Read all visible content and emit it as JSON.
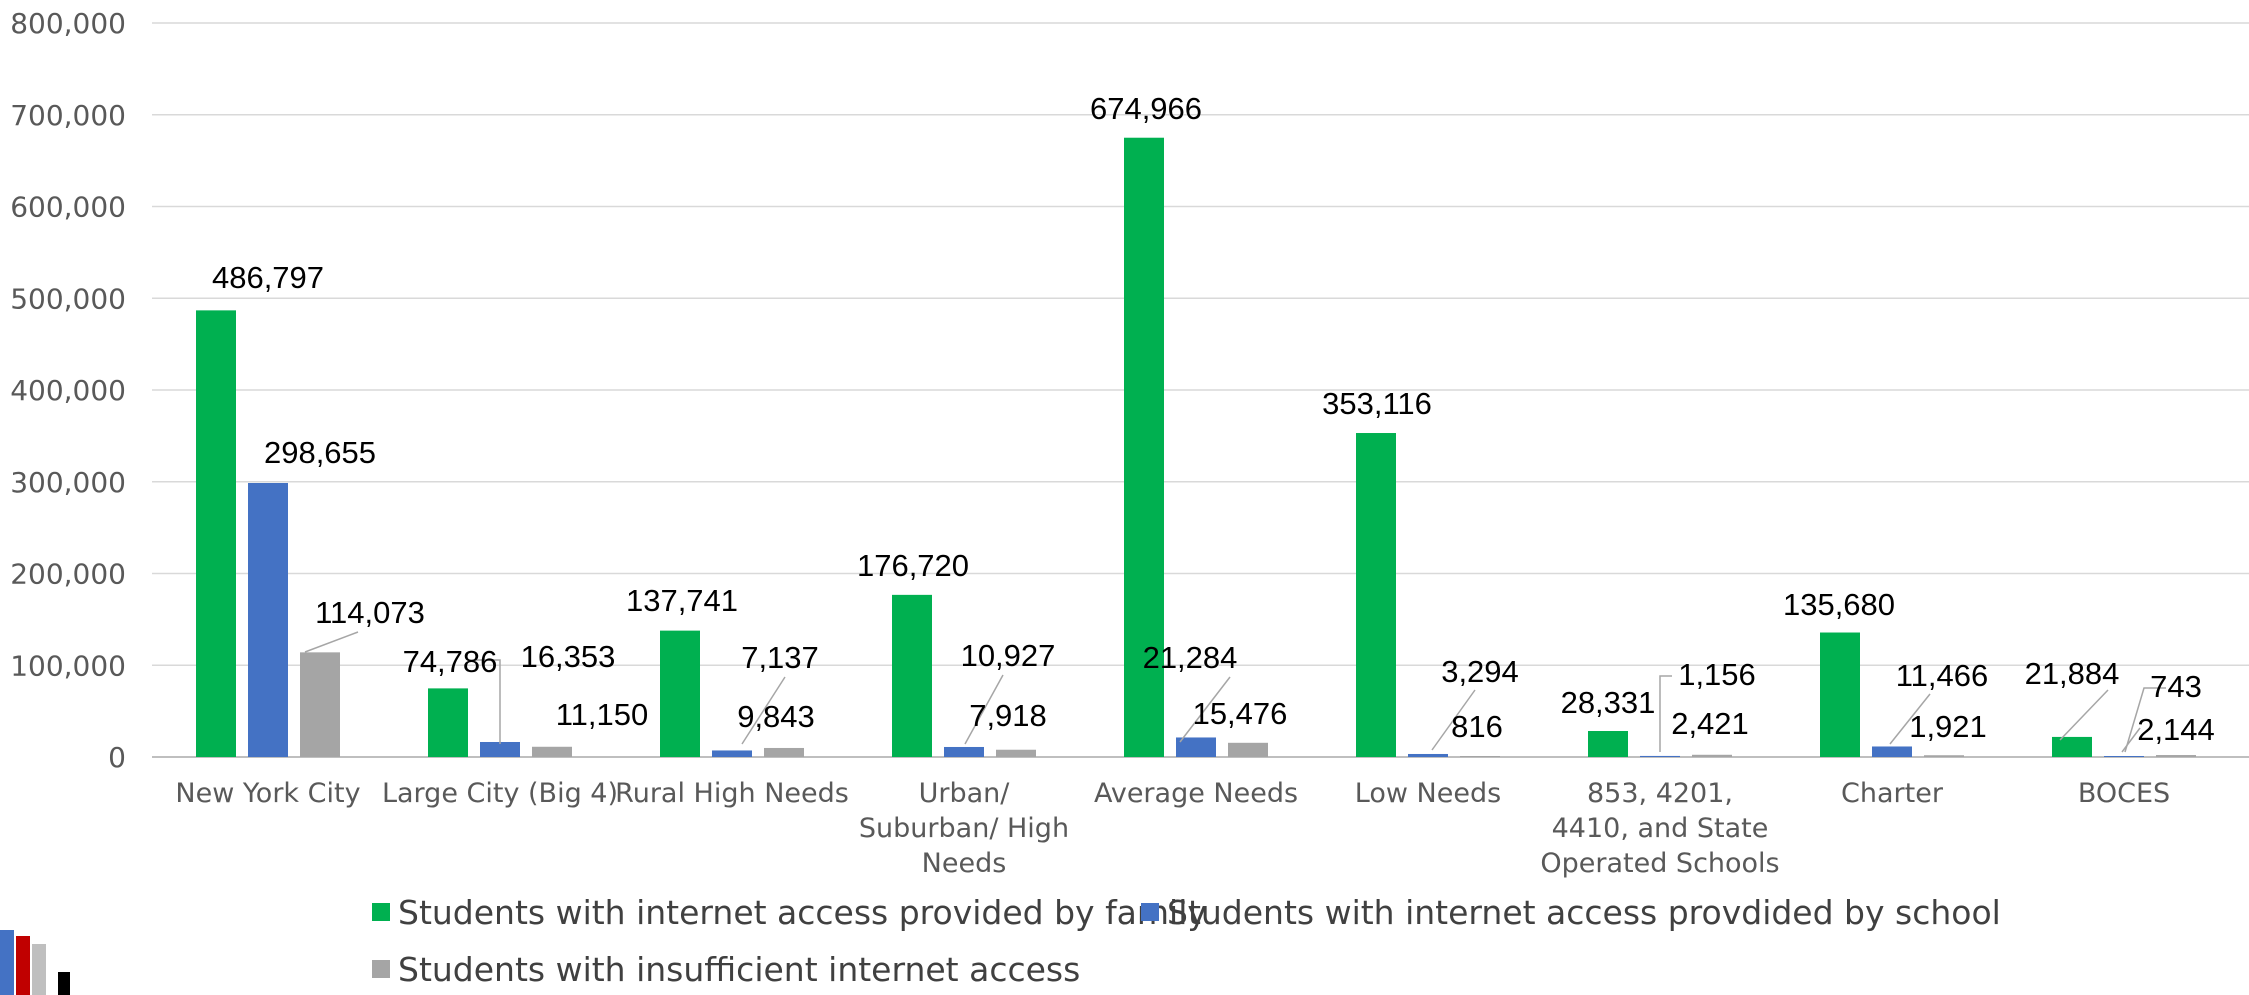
{
  "chart_data": {
    "type": "bar",
    "title": "",
    "xlabel": "",
    "ylabel": "",
    "ylim": [
      0,
      800000
    ],
    "y_ticks": [
      "0",
      "100,000",
      "200,000",
      "300,000",
      "400,000",
      "500,000",
      "600,000",
      "700,000",
      "800,000"
    ],
    "grid": true,
    "legend_position": "bottom",
    "categories": [
      [
        "New York City"
      ],
      [
        "Large City (Big 4)"
      ],
      [
        "Rural High Needs"
      ],
      [
        "Urban/",
        "Suburban/ High",
        "Needs"
      ],
      [
        "Average Needs"
      ],
      [
        "Low Needs"
      ],
      [
        "853, 4201,",
        "4410, and State",
        "Operated Schools"
      ],
      [
        "Charter"
      ],
      [
        "BOCES"
      ]
    ],
    "series": [
      {
        "name": "Students with internet access provided by family",
        "color": "#00b050",
        "values": [
          486797,
          74786,
          137741,
          176720,
          674966,
          353116,
          28331,
          135680,
          21884
        ],
        "labels": [
          "486,797",
          "74,786",
          "137,741",
          "176,720",
          "674,966",
          "353,116",
          "28,331",
          "135,680",
          "21,884"
        ]
      },
      {
        "name": "Students with internet access provdided by school",
        "color": "#4472c4",
        "values": [
          298655,
          16353,
          7137,
          10927,
          21284,
          3294,
          1156,
          11466,
          743
        ],
        "labels": [
          "298,655",
          "16,353",
          "7,137",
          "10,927",
          "21,284",
          "3,294",
          "1,156",
          "11,466",
          "743"
        ]
      },
      {
        "name": "Students with insufficient internet access",
        "color": "#a5a5a5",
        "values": [
          114073,
          11150,
          9843,
          7918,
          15476,
          816,
          2421,
          1921,
          2144
        ],
        "labels": [
          "114,073",
          "11,150",
          "9,843",
          "7,918",
          "15,476",
          "816",
          "2,421",
          "1,921",
          "2,144"
        ]
      }
    ]
  }
}
